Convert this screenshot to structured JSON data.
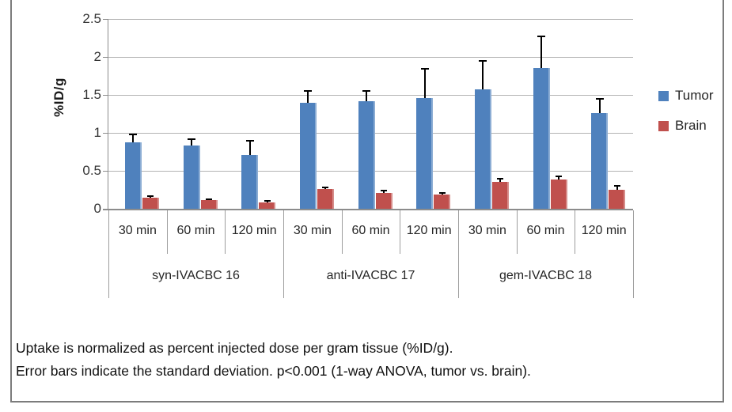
{
  "figure": {
    "caption_line1": "Uptake is normalized as percent injected dose per gram tissue (%ID/g).",
    "caption_line2": "Error bars indicate the standard deviation. p<0.001 (1-way ANOVA, tumor vs. brain)."
  },
  "chart_data": {
    "type": "bar",
    "title": "",
    "ylabel": "%ID/g",
    "ylim": [
      0,
      2.5
    ],
    "yticks": [
      0,
      0.5,
      1,
      1.5,
      2,
      2.5
    ],
    "grid": true,
    "legend_position": "right",
    "groups": [
      "syn-IVACBC 16",
      "anti-IVACBC 17",
      "gem-IVACBC 18"
    ],
    "categories": [
      "30 min",
      "60 min",
      "120 min"
    ],
    "series": [
      {
        "name": "Tumor",
        "color": "#4F81BD",
        "values": [
          0.88,
          0.83,
          0.71,
          1.4,
          1.42,
          1.46,
          1.57,
          1.85,
          1.26
        ],
        "errors_sd": [
          0.1,
          0.09,
          0.19,
          0.15,
          0.13,
          0.38,
          0.38,
          0.42,
          0.19
        ]
      },
      {
        "name": "Brain",
        "color": "#C0504D",
        "values": [
          0.15,
          0.11,
          0.08,
          0.26,
          0.21,
          0.19,
          0.35,
          0.39,
          0.25
        ],
        "errors_sd": [
          0.02,
          0.02,
          0.02,
          0.02,
          0.03,
          0.02,
          0.05,
          0.04,
          0.05
        ]
      }
    ]
  }
}
